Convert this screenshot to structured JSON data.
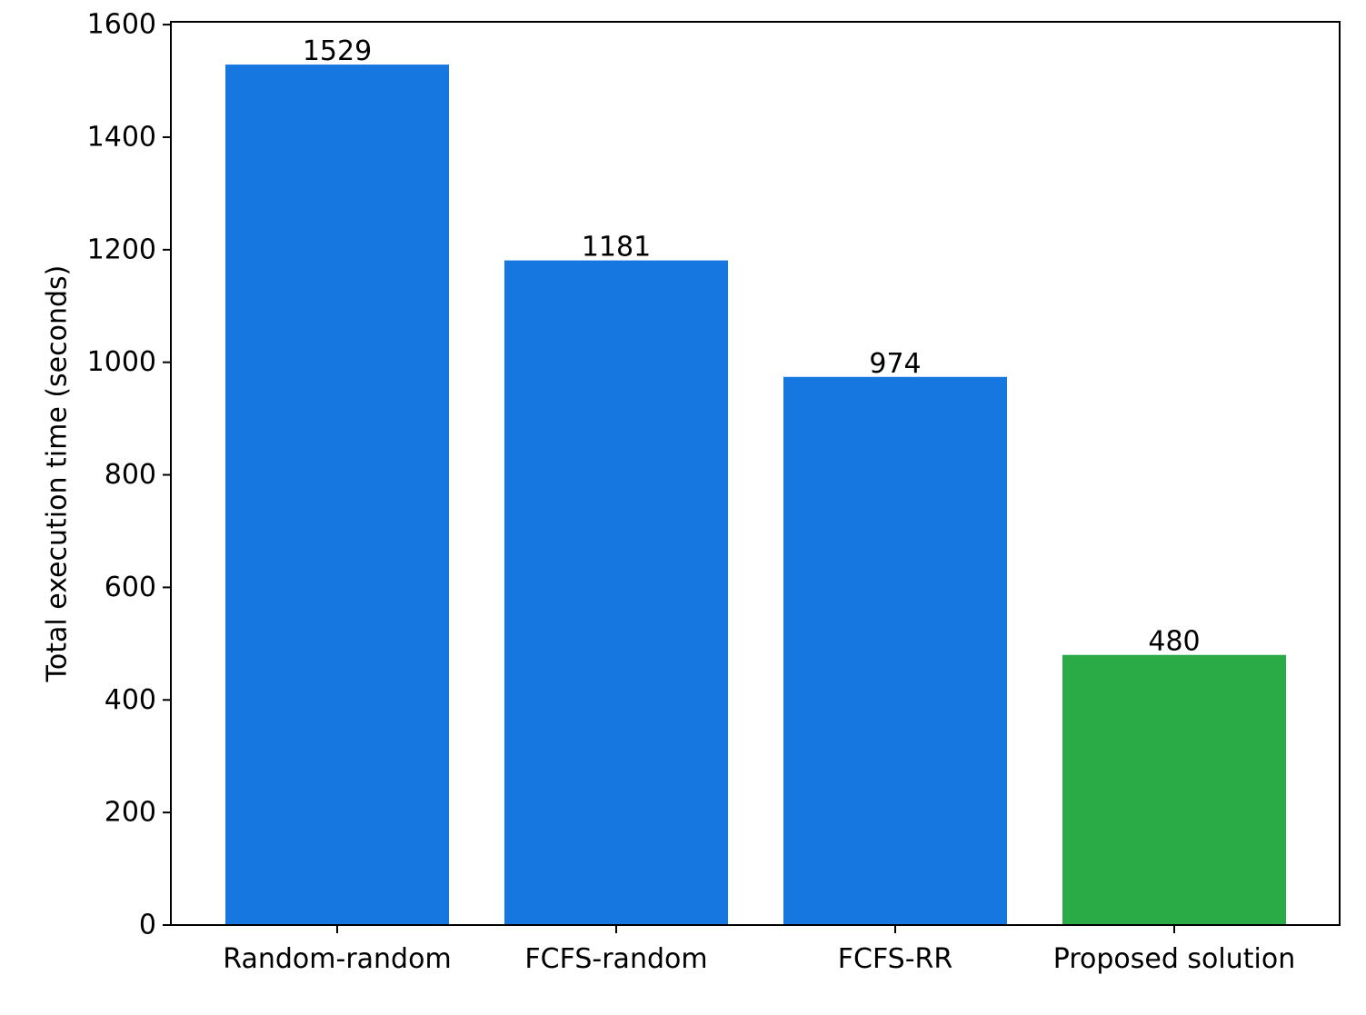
{
  "chart_data": {
    "type": "bar",
    "title": "",
    "xlabel": "",
    "ylabel": "Total execution time (seconds)",
    "categories": [
      "Random-random",
      "FCFS-random",
      "FCFS-RR",
      "Proposed solution"
    ],
    "values": [
      1529,
      1181,
      974,
      480
    ],
    "value_labels": [
      "1529",
      "1181",
      "974",
      "480"
    ],
    "bar_colors": [
      "#1677e1",
      "#1677e1",
      "#1677e1",
      "#2aab45"
    ],
    "ylim": [
      0,
      1605
    ],
    "yticks": [
      0,
      200,
      400,
      600,
      800,
      1000,
      1200,
      1400,
      1600
    ],
    "ytick_labels": [
      "0",
      "200",
      "400",
      "600",
      "800",
      "1000",
      "1200",
      "1400",
      "1600"
    ],
    "grid": false,
    "legend": "none"
  }
}
